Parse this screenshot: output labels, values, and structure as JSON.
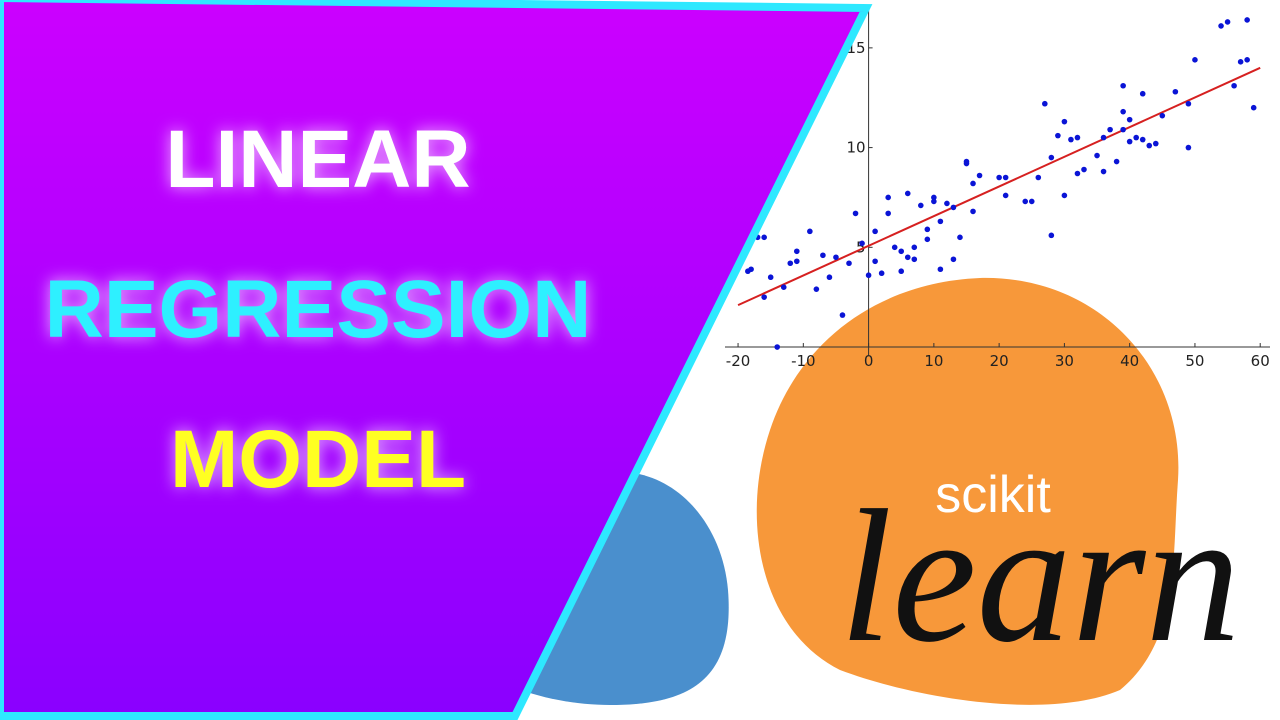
{
  "chart_data": {
    "type": "scatter",
    "color": "#0a14d6",
    "x": [
      -18.5,
      -18,
      -17,
      -16,
      -16,
      -15,
      -14,
      -13,
      -12,
      -11,
      -11,
      -9,
      -8,
      -7,
      -6,
      -5,
      -4,
      -3,
      -2,
      -1,
      0,
      1,
      1,
      2,
      3,
      3,
      4,
      5,
      5,
      6,
      6,
      7,
      7,
      8,
      9,
      9,
      10,
      10,
      11,
      11,
      12,
      13,
      13,
      14,
      15,
      15,
      16,
      16,
      17,
      20,
      21,
      21,
      24,
      25,
      26,
      27,
      28,
      28,
      29,
      30,
      31,
      32,
      32,
      33,
      35,
      36,
      37,
      38,
      39,
      39,
      40,
      40,
      41,
      42,
      42,
      43,
      44,
      45,
      47,
      49,
      49,
      50,
      54,
      55,
      56,
      57,
      58,
      58,
      59,
      39,
      30,
      36
    ],
    "values": [
      3.8,
      3.9,
      5.5,
      5.5,
      2.5,
      3.5,
      0,
      3,
      4.2,
      4.3,
      4.8,
      5.8,
      2.9,
      4.6,
      3.5,
      4.5,
      1.6,
      4.2,
      6.7,
      5.2,
      3.6,
      5.8,
      4.3,
      3.7,
      7.5,
      6.7,
      5,
      4.8,
      3.8,
      7.7,
      4.5,
      4.4,
      5,
      7.1,
      5.4,
      5.9,
      7.5,
      7.3,
      6.3,
      3.9,
      7.2,
      7,
      4.4,
      5.5,
      9.2,
      9.3,
      6.8,
      8.2,
      8.6,
      8.5,
      8.5,
      7.6,
      7.3,
      7.3,
      8.5,
      12.2,
      9.5,
      5.6,
      10.6,
      7.6,
      10.4,
      10.5,
      8.7,
      8.9,
      9.6,
      8.8,
      10.9,
      9.3,
      13.1,
      11.8,
      11.4,
      10.3,
      10.5,
      12.7,
      10.4,
      10.1,
      10.2,
      11.6,
      12.8,
      12.2,
      10,
      14.4,
      16.1,
      16.3,
      13.1,
      14.3,
      16.4,
      14.4,
      12,
      10.9,
      11.3,
      10.5
    ],
    "fit_line": {
      "x": [
        -20,
        60
      ],
      "values": [
        2.1,
        14
      ],
      "color": "#d62020"
    },
    "xlim": [
      -22,
      61.5
    ],
    "ylim": [
      -0.4,
      17.4
    ],
    "xticks": [
      -20,
      -10,
      0,
      10,
      20,
      30,
      40,
      50,
      60
    ],
    "yticks": [
      5,
      10,
      15
    ]
  },
  "banner": {
    "line1": "LINEAR",
    "line2": "REGRESSION",
    "line3": "MODEL"
  },
  "logo": {
    "small": "scikit",
    "large": "learn"
  }
}
